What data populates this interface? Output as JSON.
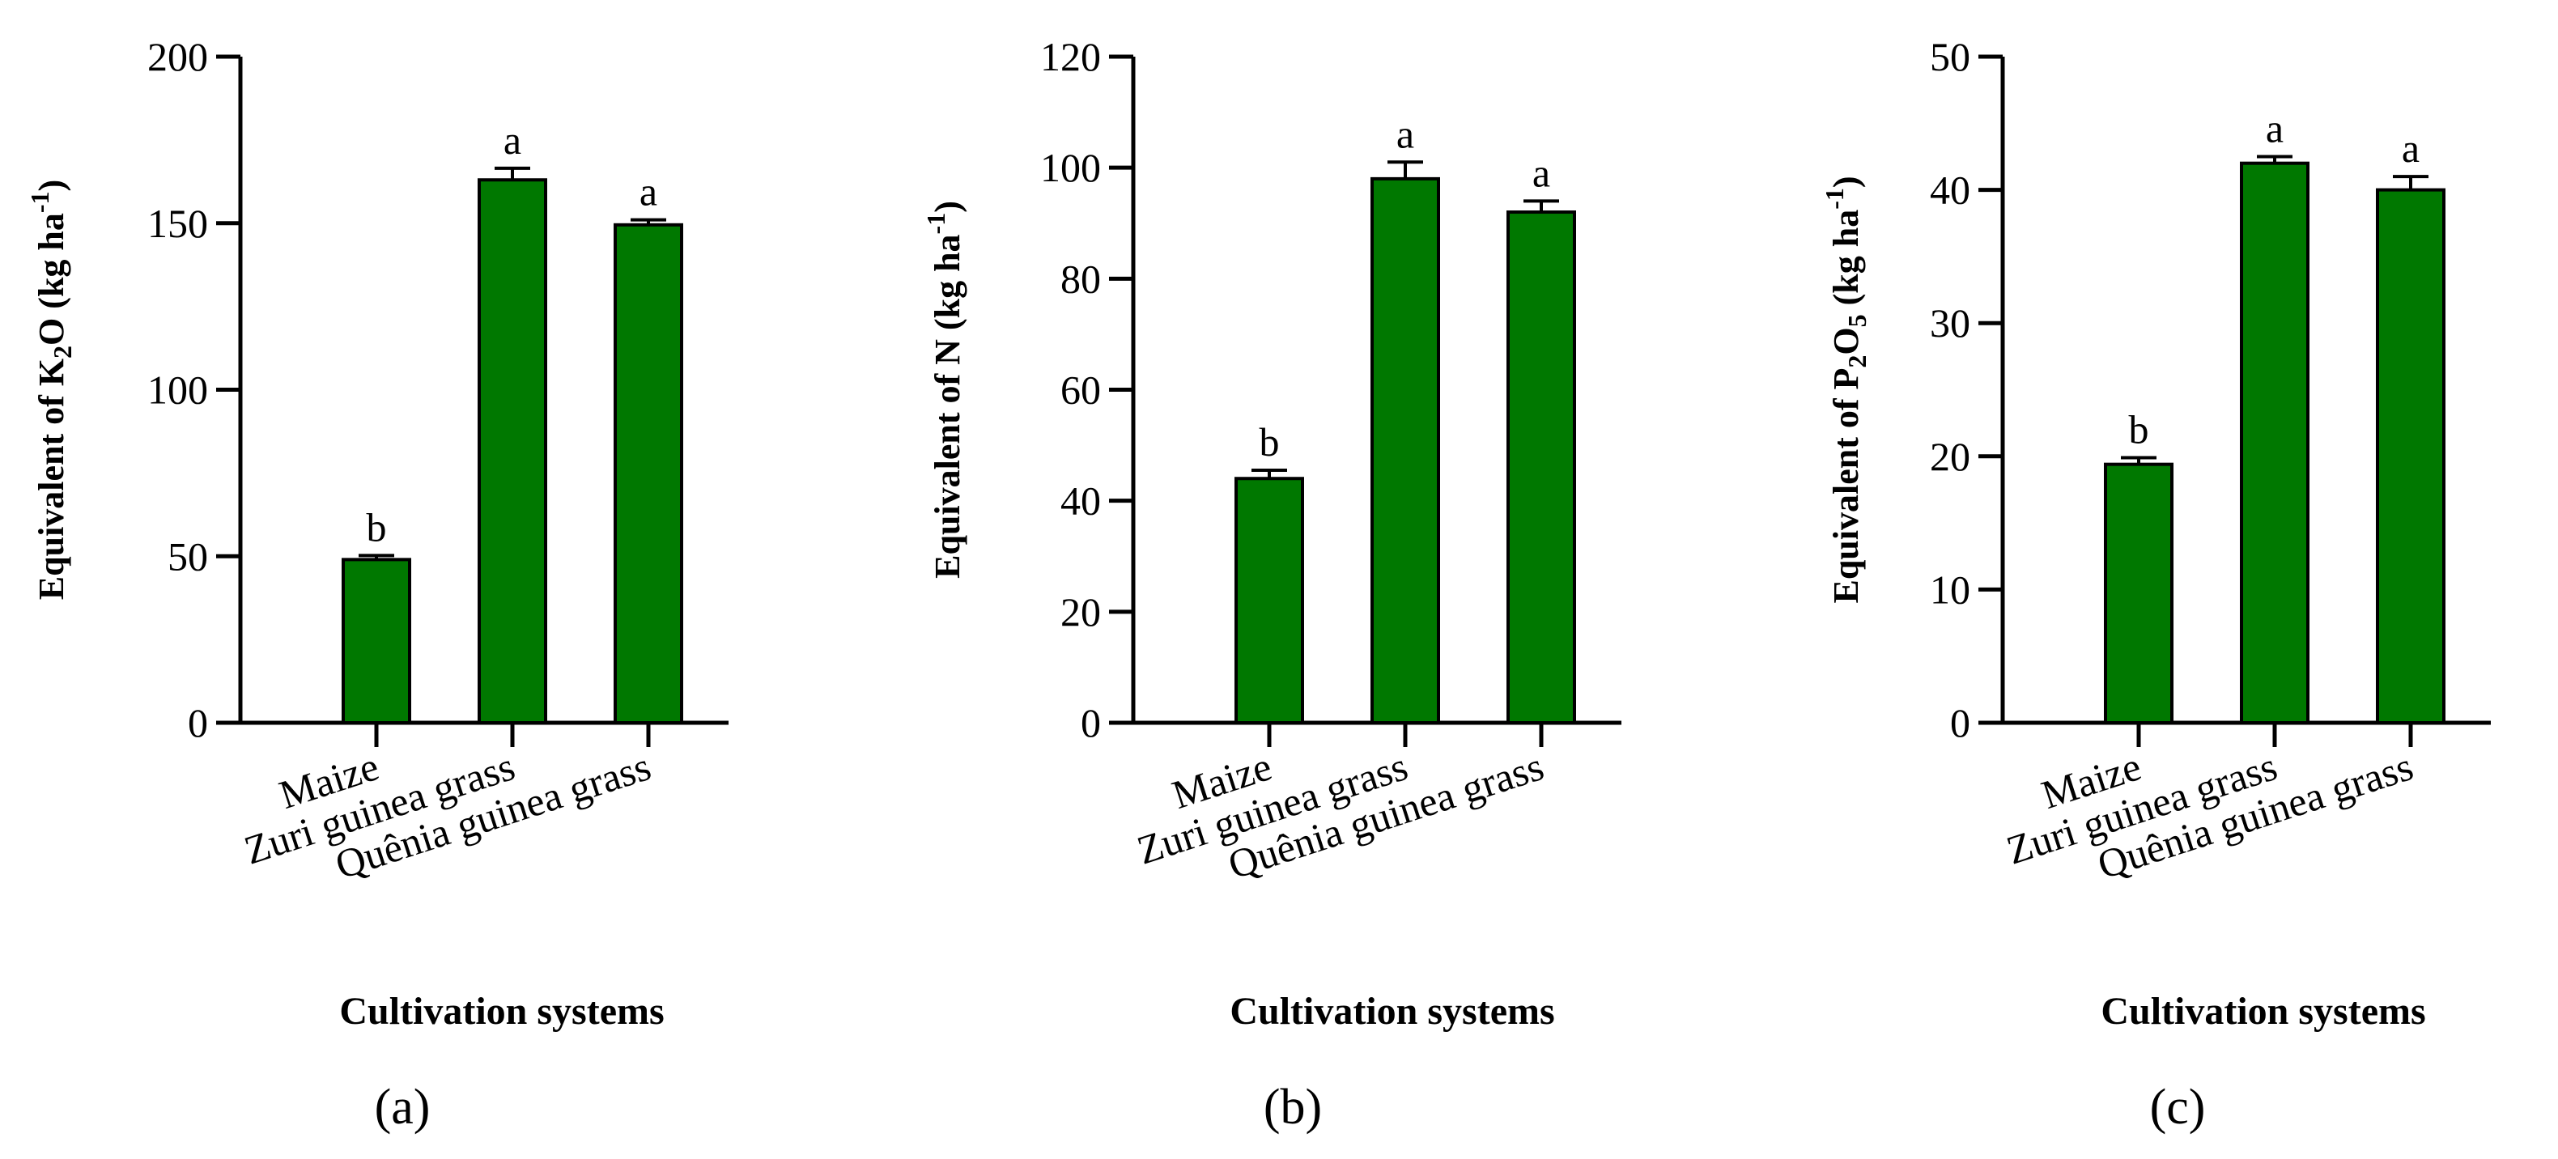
{
  "colors": {
    "bar_fill": "#007800",
    "bar_stroke": "#000000",
    "axis": "#000000"
  },
  "chart_data": [
    {
      "type": "bar",
      "panel": "(a)",
      "categories": [
        "Maize",
        "Zuri guinea grass",
        "Quênia guinea grass"
      ],
      "values": [
        49,
        163,
        149.5
      ],
      "errors": [
        1.2,
        3.5,
        1.5
      ],
      "significance": [
        "b",
        "a",
        "a"
      ],
      "ylim": [
        0,
        200
      ],
      "yticks": [
        0,
        50,
        100,
        150,
        200
      ],
      "ylabel": {
        "prefix": "Equivalent of K",
        "sub": "2",
        "middle": "O (kg ha",
        "sup": "-1",
        "suffix": ")"
      },
      "xlabel": "Cultivation systems"
    },
    {
      "type": "bar",
      "panel": "(b)",
      "categories": [
        "Maize",
        "Zuri guinea grass",
        "Quênia guinea grass"
      ],
      "values": [
        44,
        98,
        92
      ],
      "errors": [
        1.5,
        3,
        2
      ],
      "significance": [
        "b",
        "a",
        "a"
      ],
      "ylim": [
        0,
        120
      ],
      "yticks": [
        0,
        20,
        40,
        60,
        80,
        100,
        120
      ],
      "ylabel": {
        "prefix": "Equivalent of N (kg ha",
        "sub": "",
        "middle": "",
        "sup": "-1",
        "suffix": ")"
      },
      "xlabel": "Cultivation systems"
    },
    {
      "type": "bar",
      "panel": "(c)",
      "categories": [
        "Maize",
        "Zuri guinea grass",
        "Quênia guinea grass"
      ],
      "values": [
        19.4,
        42,
        40
      ],
      "errors": [
        0.5,
        0.5,
        1
      ],
      "significance": [
        "b",
        "a",
        "a"
      ],
      "ylim": [
        0,
        50
      ],
      "yticks": [
        0,
        10,
        20,
        30,
        40,
        50
      ],
      "ylabel": {
        "prefix": "Equivalent of P",
        "sub": "2",
        "middle": "O",
        "sub2": "5",
        "sup": "-1",
        "pre_sup": " (kg ha",
        "suffix": ")"
      },
      "xlabel": "Cultivation systems"
    }
  ]
}
